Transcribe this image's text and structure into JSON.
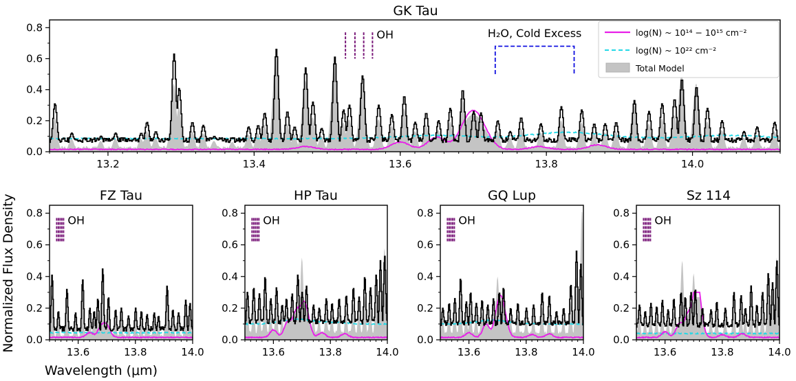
{
  "chart_data": {
    "type": "line",
    "ylabel": "Normalized Flux Density",
    "xlabel": "Wavelength (μm)",
    "legend": {
      "placement": "top-right",
      "entries": [
        {
          "label": "log(N) ~ 10¹⁴ − 10¹⁵ cm⁻²",
          "style": "solid",
          "color": "#e81ee8"
        },
        {
          "label": "log(N) ~ 10²² cm⁻²",
          "style": "dashed",
          "color": "#22d8e6"
        },
        {
          "label": "Total Model",
          "style": "fill",
          "color": "#c4c4c4"
        }
      ]
    },
    "panels": [
      {
        "title": "GK Tau",
        "xlim": [
          13.12,
          14.12
        ],
        "ylim": [
          0,
          0.85
        ],
        "xticks": [
          13.2,
          13.4,
          13.6,
          13.8,
          14.0
        ],
        "yticks": [
          0.0,
          0.2,
          0.4,
          0.6,
          0.8
        ],
        "oh_label": "OH",
        "oh_lines": [
          13.525,
          13.538,
          13.55,
          13.562
        ],
        "water_label": "H₂O, Cold Excess",
        "water_range": [
          13.73,
          13.838
        ],
        "peaks": [
          [
            13.127,
            0.31
          ],
          [
            13.15,
            0.12
          ],
          [
            13.19,
            0.1
          ],
          [
            13.21,
            0.12
          ],
          [
            13.245,
            0.12
          ],
          [
            13.253,
            0.19
          ],
          [
            13.265,
            0.13
          ],
          [
            13.29,
            0.63
          ],
          [
            13.297,
            0.41
          ],
          [
            13.315,
            0.19
          ],
          [
            13.33,
            0.17
          ],
          [
            13.345,
            0.1
          ],
          [
            13.37,
            0.09
          ],
          [
            13.392,
            0.16
          ],
          [
            13.405,
            0.17
          ],
          [
            13.414,
            0.25
          ],
          [
            13.43,
            0.66
          ],
          [
            13.445,
            0.26
          ],
          [
            13.455,
            0.16
          ],
          [
            13.47,
            0.54
          ],
          [
            13.48,
            0.32
          ],
          [
            13.492,
            0.15
          ],
          [
            13.51,
            0.61
          ],
          [
            13.522,
            0.27
          ],
          [
            13.53,
            0.3
          ],
          [
            13.548,
            0.49
          ],
          [
            13.57,
            0.3
          ],
          [
            13.588,
            0.24
          ],
          [
            13.605,
            0.36
          ],
          [
            13.62,
            0.19
          ],
          [
            13.635,
            0.25
          ],
          [
            13.652,
            0.2
          ],
          [
            13.668,
            0.28
          ],
          [
            13.685,
            0.4
          ],
          [
            13.7,
            0.26
          ],
          [
            13.71,
            0.25
          ],
          [
            13.733,
            0.2
          ],
          [
            13.75,
            0.13
          ],
          [
            13.765,
            0.22
          ],
          [
            13.792,
            0.18
          ],
          [
            13.82,
            0.29
          ],
          [
            13.848,
            0.27
          ],
          [
            13.865,
            0.18
          ],
          [
            13.88,
            0.18
          ],
          [
            13.895,
            0.19
          ],
          [
            13.92,
            0.33
          ],
          [
            13.94,
            0.26
          ],
          [
            13.958,
            0.31
          ],
          [
            13.975,
            0.34
          ],
          [
            13.985,
            0.47
          ],
          [
            14.005,
            0.42
          ],
          [
            14.02,
            0.28
          ],
          [
            14.04,
            0.2
          ],
          [
            14.07,
            0.13
          ],
          [
            14.088,
            0.16
          ],
          [
            14.112,
            0.19
          ]
        ],
        "model_peaks": [
          [
            13.29,
            0.34
          ],
          [
            13.43,
            0.62
          ],
          [
            13.47,
            0.46
          ],
          [
            13.51,
            0.58
          ],
          [
            13.548,
            0.44
          ],
          [
            13.605,
            0.28
          ],
          [
            13.685,
            0.34
          ],
          [
            13.92,
            0.3
          ],
          [
            13.985,
            0.5
          ],
          [
            14.005,
            0.44
          ]
        ],
        "baseline": 0.03,
        "cold_level": 0.085,
        "cold_bumps": [
          [
            13.65,
            0.02
          ],
          [
            13.83,
            0.04
          ],
          [
            14.05,
            0.02
          ]
        ],
        "hot_bumps": [
          [
            13.47,
            0.03
          ],
          [
            13.6,
            0.08
          ],
          [
            13.65,
            0.13
          ],
          [
            13.69,
            0.2
          ],
          [
            13.703,
            0.24
          ],
          [
            13.715,
            0.1
          ],
          [
            13.79,
            0.03
          ],
          [
            13.87,
            0.05
          ]
        ]
      },
      {
        "title": "FZ Tau",
        "xlim": [
          13.5,
          14.0
        ],
        "ylim": [
          0,
          0.85
        ],
        "xticks": [
          13.6,
          13.8,
          14.0
        ],
        "yticks": [
          0.0,
          0.2,
          0.4,
          0.6,
          0.8
        ],
        "oh_label": "OH",
        "oh_lines": [
          13.525,
          13.531,
          13.537,
          13.543,
          13.549
        ],
        "peaks": [
          [
            13.508,
            0.41
          ],
          [
            13.53,
            0.18
          ],
          [
            13.56,
            0.32
          ],
          [
            13.59,
            0.17
          ],
          [
            13.615,
            0.38
          ],
          [
            13.64,
            0.2
          ],
          [
            13.655,
            0.18
          ],
          [
            13.668,
            0.26
          ],
          [
            13.685,
            0.45
          ],
          [
            13.705,
            0.27
          ],
          [
            13.73,
            0.19
          ],
          [
            13.75,
            0.2
          ],
          [
            13.775,
            0.15
          ],
          [
            13.8,
            0.2
          ],
          [
            13.82,
            0.18
          ],
          [
            13.84,
            0.16
          ],
          [
            13.865,
            0.17
          ],
          [
            13.88,
            0.15
          ],
          [
            13.91,
            0.34
          ],
          [
            13.93,
            0.19
          ],
          [
            13.95,
            0.17
          ],
          [
            13.975,
            0.25
          ],
          [
            13.99,
            0.23
          ]
        ],
        "model_peaks": [
          [
            13.685,
            0.25
          ],
          [
            13.91,
            0.28
          ]
        ],
        "baseline": 0.025,
        "cold_level": 0.045,
        "cold_bumps": [],
        "hot_bumps": [
          [
            13.64,
            0.05
          ],
          [
            13.68,
            0.1
          ],
          [
            13.7,
            0.12
          ]
        ]
      },
      {
        "title": "HP Tau",
        "xlim": [
          13.5,
          14.0
        ],
        "ylim": [
          0,
          0.85
        ],
        "xticks": [
          13.6,
          13.8,
          14.0
        ],
        "yticks": [
          0.0,
          0.2,
          0.4,
          0.6,
          0.8
        ],
        "oh_label": "OH",
        "oh_lines": [
          13.525,
          13.531,
          13.537,
          13.543,
          13.549
        ],
        "peaks": [
          [
            13.508,
            0.3
          ],
          [
            13.53,
            0.33
          ],
          [
            13.55,
            0.29
          ],
          [
            13.57,
            0.4
          ],
          [
            13.59,
            0.26
          ],
          [
            13.61,
            0.33
          ],
          [
            13.63,
            0.22
          ],
          [
            13.645,
            0.26
          ],
          [
            13.665,
            0.29
          ],
          [
            13.685,
            0.41
          ],
          [
            13.7,
            0.3
          ],
          [
            13.715,
            0.34
          ],
          [
            13.74,
            0.22
          ],
          [
            13.76,
            0.2
          ],
          [
            13.785,
            0.26
          ],
          [
            13.805,
            0.23
          ],
          [
            13.83,
            0.26
          ],
          [
            13.855,
            0.28
          ],
          [
            13.88,
            0.33
          ],
          [
            13.9,
            0.27
          ],
          [
            13.92,
            0.4
          ],
          [
            13.94,
            0.33
          ],
          [
            13.96,
            0.41
          ],
          [
            13.975,
            0.5
          ],
          [
            13.99,
            0.53
          ]
        ],
        "model_peaks": [
          [
            13.7,
            0.52
          ],
          [
            13.99,
            0.58
          ]
        ],
        "baseline": 0.07,
        "cold_level": 0.1,
        "cold_bumps": [
          [
            13.68,
            0.03
          ],
          [
            13.8,
            0.01
          ]
        ],
        "hot_bumps": [
          [
            13.6,
            0.08
          ],
          [
            13.65,
            0.16
          ],
          [
            13.68,
            0.26
          ],
          [
            13.705,
            0.28
          ],
          [
            13.72,
            0.15
          ],
          [
            13.77,
            0.05
          ],
          [
            13.85,
            0.04
          ]
        ]
      },
      {
        "title": "GQ Lup",
        "xlim": [
          13.5,
          14.0
        ],
        "ylim": [
          0,
          0.85
        ],
        "xticks": [
          13.6,
          13.8,
          14.0
        ],
        "yticks": [
          0.0,
          0.2,
          0.4,
          0.6,
          0.8
        ],
        "oh_label": "OH",
        "oh_lines": [
          13.525,
          13.531,
          13.537,
          13.543,
          13.549
        ],
        "peaks": [
          [
            13.508,
            0.2
          ],
          [
            13.53,
            0.23
          ],
          [
            13.55,
            0.26
          ],
          [
            13.57,
            0.39
          ],
          [
            13.59,
            0.24
          ],
          [
            13.605,
            0.3
          ],
          [
            13.625,
            0.23
          ],
          [
            13.645,
            0.25
          ],
          [
            13.665,
            0.22
          ],
          [
            13.685,
            0.26
          ],
          [
            13.705,
            0.3
          ],
          [
            13.72,
            0.33
          ],
          [
            13.745,
            0.2
          ],
          [
            13.77,
            0.23
          ],
          [
            13.8,
            0.2
          ],
          [
            13.825,
            0.22
          ],
          [
            13.855,
            0.3
          ],
          [
            13.88,
            0.28
          ],
          [
            13.905,
            0.18
          ],
          [
            13.93,
            0.2
          ],
          [
            13.955,
            0.35
          ],
          [
            13.975,
            0.56
          ],
          [
            13.99,
            0.48
          ]
        ],
        "model_peaks": [
          [
            13.7,
            0.4
          ],
          [
            13.995,
            0.82
          ]
        ],
        "baseline": 0.06,
        "cold_level": 0.1,
        "cold_bumps": [
          [
            13.68,
            0.025
          ]
        ],
        "hot_bumps": [
          [
            13.6,
            0.05
          ],
          [
            13.66,
            0.14
          ],
          [
            13.7,
            0.24
          ],
          [
            13.715,
            0.27
          ],
          [
            13.73,
            0.09
          ],
          [
            13.82,
            0.03
          ],
          [
            13.88,
            0.04
          ]
        ]
      },
      {
        "title": "Sz 114",
        "xlim": [
          13.5,
          14.0
        ],
        "ylim": [
          0,
          0.85
        ],
        "xticks": [
          13.6,
          13.8,
          14.0
        ],
        "yticks": [
          0.0,
          0.2,
          0.4,
          0.6,
          0.8
        ],
        "oh_label": "OH",
        "oh_lines": [
          13.525,
          13.531,
          13.537,
          13.543,
          13.549
        ],
        "peaks": [
          [
            13.51,
            0.22
          ],
          [
            13.53,
            0.18
          ],
          [
            13.55,
            0.23
          ],
          [
            13.57,
            0.21
          ],
          [
            13.59,
            0.25
          ],
          [
            13.61,
            0.19
          ],
          [
            13.63,
            0.26
          ],
          [
            13.655,
            0.3
          ],
          [
            13.67,
            0.27
          ],
          [
            13.69,
            0.3
          ],
          [
            13.705,
            0.32
          ],
          [
            13.73,
            0.2
          ],
          [
            13.76,
            0.19
          ],
          [
            13.78,
            0.24
          ],
          [
            13.81,
            0.2
          ],
          [
            13.84,
            0.3
          ],
          [
            13.865,
            0.28
          ],
          [
            13.88,
            0.2
          ],
          [
            13.9,
            0.34
          ],
          [
            13.92,
            0.22
          ],
          [
            13.94,
            0.3
          ],
          [
            13.96,
            0.42
          ],
          [
            13.975,
            0.36
          ],
          [
            13.99,
            0.5
          ]
        ],
        "model_peaks": [
          [
            13.66,
            0.5
          ],
          [
            13.7,
            0.42
          ],
          [
            13.99,
            0.52
          ]
        ],
        "baseline": 0.05,
        "cold_level": 0.04,
        "cold_bumps": [],
        "hot_bumps": [
          [
            13.6,
            0.06
          ],
          [
            13.65,
            0.14
          ],
          [
            13.68,
            0.22
          ],
          [
            13.705,
            0.3
          ],
          [
            13.715,
            0.29
          ],
          [
            13.725,
            0.1
          ],
          [
            13.8,
            0.03
          ],
          [
            13.87,
            0.04
          ]
        ]
      }
    ]
  }
}
